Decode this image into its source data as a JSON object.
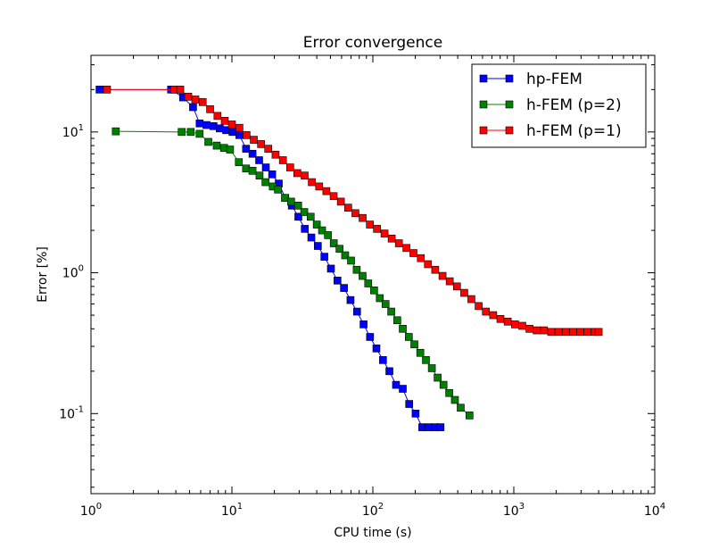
{
  "chart_data": {
    "type": "line",
    "title": "Error convergence",
    "xlabel": "CPU time (s)",
    "ylabel": "Error [%]",
    "xscale": "log",
    "yscale": "log",
    "xlim": [
      1,
      10000
    ],
    "ylim": [
      0.027,
      35
    ],
    "xticks": [
      {
        "value": 1,
        "base": "10",
        "exp": "0"
      },
      {
        "value": 10,
        "base": "10",
        "exp": "1"
      },
      {
        "value": 100,
        "base": "10",
        "exp": "2"
      },
      {
        "value": 1000,
        "base": "10",
        "exp": "3"
      },
      {
        "value": 10000,
        "base": "10",
        "exp": "4"
      }
    ],
    "yticks": [
      {
        "value": 0.1,
        "base": "10",
        "exp": "-1"
      },
      {
        "value": 1,
        "base": "10",
        "exp": "0"
      },
      {
        "value": 10,
        "base": "10",
        "exp": "1"
      }
    ],
    "grid": false,
    "legend_position": "top-right",
    "series": [
      {
        "name": "hp-FEM",
        "color": "#0000ff",
        "x": [
          1.15,
          3.7,
          4.5,
          5.3,
          5.9,
          6.6,
          7.4,
          8.2,
          9.1,
          10.1,
          11.3,
          12.6,
          14.0,
          15.6,
          17.4,
          19.3,
          21.5,
          23.9,
          26.6,
          29.6,
          32.9,
          36.6,
          40.7,
          45.3,
          50.4,
          56.1,
          62.4,
          69.4,
          77.2,
          85.9,
          95.5,
          106,
          118,
          131,
          146,
          163,
          181,
          201,
          224,
          249,
          277,
          302
        ],
        "y": [
          20.0,
          20.0,
          17.6,
          15.0,
          11.5,
          11.2,
          11.0,
          10.6,
          10.3,
          10.0,
          9.5,
          7.6,
          7.0,
          6.3,
          5.6,
          5.0,
          4.3,
          3.4,
          3.0,
          2.5,
          2.05,
          1.78,
          1.55,
          1.3,
          1.07,
          0.88,
          0.78,
          0.64,
          0.53,
          0.43,
          0.35,
          0.29,
          0.24,
          0.2,
          0.16,
          0.15,
          0.117,
          0.1,
          0.08,
          0.08,
          0.08,
          0.08
        ]
      },
      {
        "name": "h-FEM (p=2)",
        "color": "#008000",
        "x": [
          1.5,
          4.4,
          5.1,
          5.9,
          6.8,
          7.8,
          8.8,
          9.7,
          11.2,
          12.6,
          14.0,
          15.7,
          17.3,
          19.5,
          21.2,
          23.8,
          26.3,
          29.5,
          32.6,
          36.2,
          40.0,
          43.6,
          48.0,
          52.8,
          58.0,
          63.6,
          70.0,
          76.8,
          84.5,
          92.7,
          102,
          112,
          123,
          135,
          149,
          163,
          180,
          197,
          217,
          238,
          262,
          288,
          317,
          348,
          382,
          420,
          485
        ],
        "y": [
          10.1,
          10.0,
          10.0,
          9.7,
          8.5,
          8.0,
          7.7,
          7.5,
          6.1,
          5.5,
          5.3,
          4.9,
          4.4,
          4.1,
          3.9,
          3.4,
          3.2,
          3.0,
          2.7,
          2.5,
          2.2,
          2.0,
          1.85,
          1.62,
          1.48,
          1.33,
          1.22,
          1.05,
          0.95,
          0.84,
          0.75,
          0.66,
          0.6,
          0.53,
          0.46,
          0.4,
          0.35,
          0.31,
          0.27,
          0.24,
          0.21,
          0.18,
          0.16,
          0.14,
          0.125,
          0.11,
          0.097
        ]
      },
      {
        "name": "h-FEM (p=1)",
        "color": "#ff0000",
        "x": [
          1.3,
          3.9,
          4.3,
          4.9,
          5.5,
          6.2,
          7.0,
          7.9,
          8.9,
          10.0,
          11.3,
          12.7,
          14.3,
          16.1,
          18.1,
          20.4,
          23.0,
          25.9,
          29.1,
          32.8,
          36.9,
          41.6,
          46.8,
          52.7,
          59.3,
          66.8,
          75.2,
          84.6,
          95.3,
          107,
          121,
          136,
          153,
          173,
          194,
          219,
          246,
          277,
          312,
          351,
          395,
          445,
          500,
          563,
          634,
          714,
          804,
          905,
          1020,
          1148,
          1292,
          1455,
          1638,
          1844,
          2076,
          2337,
          2631,
          2962,
          3335,
          3754,
          4000
        ],
        "y": [
          20.0,
          20.0,
          20.0,
          17.8,
          17.0,
          16.3,
          14.5,
          13.0,
          12.0,
          11.3,
          10.7,
          9.5,
          8.8,
          8.2,
          7.6,
          6.9,
          6.3,
          5.6,
          5.1,
          4.9,
          4.4,
          4.1,
          3.8,
          3.5,
          3.2,
          2.9,
          2.65,
          2.45,
          2.2,
          2.05,
          1.9,
          1.75,
          1.62,
          1.5,
          1.38,
          1.27,
          1.15,
          1.05,
          0.95,
          0.87,
          0.8,
          0.72,
          0.65,
          0.58,
          0.53,
          0.5,
          0.47,
          0.45,
          0.43,
          0.42,
          0.4,
          0.39,
          0.39,
          0.38,
          0.38,
          0.38,
          0.38,
          0.38,
          0.38,
          0.38,
          0.38
        ]
      }
    ]
  }
}
